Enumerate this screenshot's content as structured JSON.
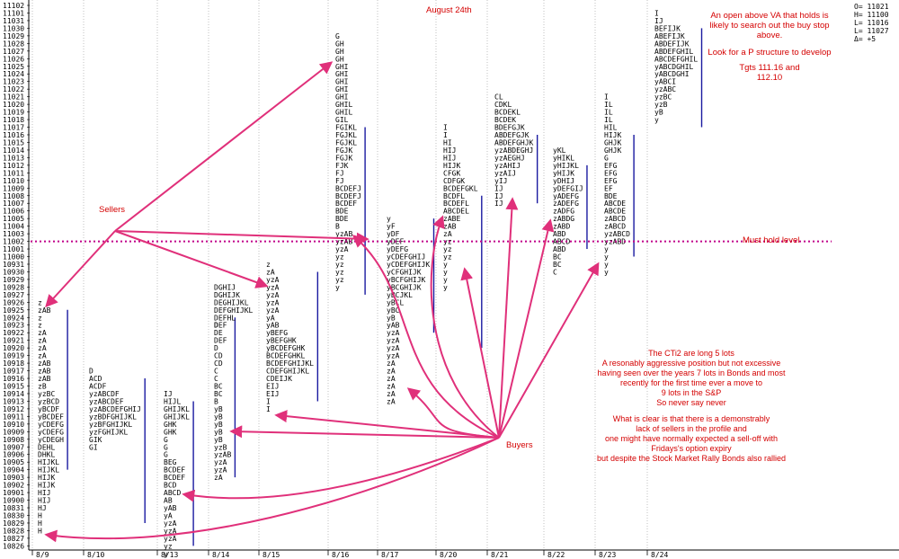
{
  "chart_data": {
    "type": "market_profile",
    "price_axis": {
      "labels": [
        "11102",
        "11101",
        "11031",
        "11030",
        "11029",
        "11028",
        "11027",
        "11026",
        "11025",
        "11024",
        "11023",
        "11022",
        "11021",
        "11020",
        "11019",
        "11018",
        "11017",
        "11016",
        "11015",
        "11014",
        "11013",
        "11012",
        "11011",
        "11010",
        "11009",
        "11008",
        "11007",
        "11006",
        "11005",
        "11004",
        "11003",
        "11002",
        "11001",
        "11000",
        "10931",
        "10930",
        "10929",
        "10928",
        "10927",
        "10926",
        "10925",
        "10924",
        "10923",
        "10922",
        "10921",
        "10920",
        "10919",
        "10918",
        "10917",
        "10916",
        "10915",
        "10914",
        "10913",
        "10912",
        "10911",
        "10910",
        "10909",
        "10908",
        "10907",
        "10906",
        "10905",
        "10904",
        "10903",
        "10902",
        "10901",
        "10900",
        "10831",
        "10830",
        "10829",
        "10828",
        "10827",
        "10826"
      ]
    },
    "status_box": {
      "open": "O=  11021",
      "high": "H=  11100",
      "low": "L=  11016",
      "last": "L=  11027",
      "delta": "Δ=      +5"
    },
    "sessions": [
      {
        "date": "8/9",
        "start_row": 39,
        "rows": [
          "z",
          "zAB",
          "z",
          "z",
          "zA",
          "zA",
          "zA",
          "zA",
          "zAB",
          "zAB",
          "zAB",
          "zB",
          "yzBC",
          "yzBCD",
          "yBCDF",
          "yBCDEF",
          "yCDEFG",
          "yCDEFG",
          "yCDEGH",
          "DEHL",
          "DHKL",
          "HIJKL",
          "HIJKL",
          "HIJK",
          "HIJK",
          "HIJ",
          "HIJ",
          "HJ",
          "H",
          "H",
          "H"
        ],
        "va_top": 40,
        "va_bot": 61
      },
      {
        "date": "8/10",
        "start_row": 48,
        "rows": [
          "D",
          "ACD",
          "ACDF",
          "yzABCDF",
          "yzABCDEF",
          "yzABCDEFGHIJ",
          "yzBDFGHIJKL",
          "yzBFGHIJKL",
          "yzFGHIJKL",
          "GIK",
          "GI"
        ],
        "va_top": 49,
        "va_bot": 68
      },
      {
        "date": "8/13",
        "start_row": 51,
        "rows": [
          "IJ",
          "HIJL",
          "GHIJKL",
          "GHIJKL",
          "GHK",
          "GHK",
          "G",
          "G",
          "G",
          "BEG",
          "BCDEF",
          "BCDEF",
          "BCD",
          "ABCD",
          "AB",
          "yAB",
          "yA",
          "yzA",
          "yzA",
          "yzA",
          "yz",
          "y"
        ],
        "va_top": 52,
        "va_bot": 71
      },
      {
        "date": "8/14",
        "start_row": 42,
        "rows": [
          "D",
          "DE",
          "DEF",
          "D",
          "CD",
          "CD",
          "C",
          "C",
          "BC",
          "BC",
          "B",
          "yB",
          "yB",
          "yB",
          "yB",
          "yB",
          "yzB",
          "yzAB",
          "yzA",
          "yzA",
          "zA"
        ],
        "va_top": 41,
        "va_bot": 62
      },
      {
        "date": "8/15",
        "start_row": 34,
        "rows": [
          "z",
          "zA",
          "yzA",
          "yzA",
          "yzA",
          "yzA",
          "yzA",
          "yA",
          "yAB",
          "yBEFG",
          "yBEFGHK",
          "yBCDEFGHK",
          "BCDEFGHKL",
          "BCDEFGHIJKL",
          "CDEFGHIJKL",
          "CDEIJK",
          "EIJ",
          "EIJ",
          "I",
          "I"
        ],
        "va_top": 35,
        "va_bot": 52
      },
      {
        "date": "8/15b",
        "start_row": 37,
        "rows": [
          "DGHIJ",
          "DGHIJK",
          "DEGHIJKL",
          "DEFGHIJKL",
          "DEFHL",
          "DEF"
        ],
        "va_top": 37,
        "va_bot": 37
      },
      {
        "date": "8/16",
        "start_row": 4,
        "rows": [
          "G",
          "GH",
          "GH",
          "GH",
          "GHI",
          "GHI",
          "GHI",
          "GHI",
          "GHI",
          "GHIL",
          "GHIL",
          "GIL",
          "FGIKL",
          "FGJKL",
          "FGJKL",
          "FGJK",
          "FGJK",
          "FJK",
          "FJ",
          "FJ",
          "BCDEFJ",
          "BCDEFJ",
          "BCDEF",
          "BDE",
          "BDE",
          "B",
          "yzAB",
          "yzAB",
          "yzA",
          "yz",
          "yz",
          "yz",
          "yz",
          "y"
        ],
        "va_top": 16,
        "va_bot": 38
      },
      {
        "date": "8/17",
        "start_row": 28,
        "rows": [
          "y",
          "yF",
          "yDF",
          "yDEF",
          "yDEFG",
          "yCDEFGHIJ",
          "yCDEFGHIJK",
          "yCFGHIJK",
          "yBCFGHIJK",
          "yBCGHIJK",
          "yBCJKL",
          "yBCL",
          "yBC",
          "yB",
          "yAB",
          "yzA",
          "yzA",
          "yzA",
          "yzA",
          "zA",
          "zA",
          "zA",
          "zA",
          "zA",
          "zA"
        ],
        "va_top": 28,
        "va_bot": 43
      },
      {
        "date": "8/20",
        "start_row": 16,
        "rows": [
          "I",
          "I",
          "HI",
          "HIJ",
          "HIJ",
          "HIJK",
          "CFGK",
          "CDFGK",
          "BCDEFGKL",
          "BCDFL",
          "BCDEFL",
          "ABCDEL",
          "zABE",
          "zAB",
          "zA",
          "yz",
          "yz",
          "yz",
          "y",
          "y",
          "y",
          "y"
        ],
        "va_top": 25,
        "va_bot": 45
      },
      {
        "date": "8/21",
        "start_row": 12,
        "rows": [
          "CL",
          "CDKL",
          "BCDEKL",
          "BCDEK",
          "BDEFGJK",
          "ABDEFGJK",
          "ABDEFGHJK",
          "yzABDEGHJ",
          "yzAEGHJ",
          "yzAHIJ",
          "yzAIJ",
          "yIJ",
          "IJ",
          "IJ",
          "IJ"
        ],
        "va_top": 17,
        "va_bot": 26
      },
      {
        "date": "8/22",
        "start_row": 19,
        "rows": [
          "yKL",
          "yHIKL",
          "yHIJKL",
          "yHIJK",
          "yDHIJ",
          "yDEFGIJ",
          "yADEFG",
          "zADEFG",
          "zADFG",
          "zABDG",
          "zABD",
          "ABD",
          "ABCD",
          "ABD",
          "BC",
          "BC",
          "C"
        ],
        "va_top": 21,
        "va_bot": 32
      },
      {
        "date": "8/23",
        "start_row": 12,
        "rows": [
          "I",
          "IL",
          "IL",
          "IL",
          "HIL",
          "HIJK",
          "GHJK",
          "GHJK",
          "G",
          "EFG",
          "EFG",
          "EFG",
          "EF",
          "BDE",
          "ABCDE",
          "ABCDE",
          "zABCD",
          "zABCD",
          "yzABCD",
          "yzABD",
          "y",
          "y",
          "y",
          "y"
        ],
        "va_top": 17,
        "va_bot": 33
      },
      {
        "date": "8/24",
        "start_row": 1,
        "rows": [
          "I",
          "IJ",
          "BEFIJK",
          "ABEFIJK",
          "ABDEFIJK",
          "ABDEFGHIL",
          "ABCDEFGHIL",
          "yABCDGHIL",
          "yABCDGHI",
          "yABCI",
          "yzABC",
          "yzBC",
          "yzB",
          "yB",
          "y"
        ],
        "va_top": 3,
        "va_bot": 16
      }
    ],
    "x_dates": [
      "8/9",
      "8/10",
      "8/13",
      "8/14",
      "8/15",
      "8/16",
      "8/17",
      "8/20",
      "8/21",
      "8/22",
      "8/23",
      "8/24"
    ],
    "reference_line": {
      "label": "Must hold level",
      "price": "11002"
    },
    "annotations": {
      "title_date": "August 24th",
      "top_note": [
        "An open above VA that holds is",
        "likely to search out the buy stop",
        "above."
      ],
      "p_structure": "Look for a P structure to develop",
      "targets": [
        "Tgts 111.16 and",
        "112.10"
      ],
      "sellers": "Sellers",
      "buyers": "Buyers",
      "cti": [
        "The CTi2 are long 5 lots",
        "A resonably aggressive position but not excessive",
        "having seen over the years 7 lots in Bonds and most",
        "recently for the first time ever a move to",
        "9 lots in the S&P",
        "So never say never"
      ],
      "clear": [
        "What is clear is that there is a demonstrably",
        "lack of sellers in the profile and",
        "one might have normally expected a sell-off with",
        "Fridays's option expiry",
        "but despite the Stock Market Rally Bonds also rallied"
      ]
    },
    "colors": {
      "arrow": "#e0307a",
      "text_red": "#d40000",
      "va_line": "#1a1aa0",
      "reference": "#c0008a"
    }
  }
}
